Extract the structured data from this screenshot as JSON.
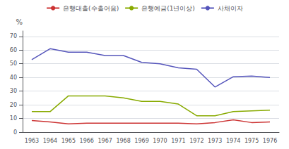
{
  "chart_data": {
    "type": "line",
    "ylabel": "%",
    "categories": [
      "1963",
      "1964",
      "1965",
      "1966",
      "1967",
      "1968",
      "1969",
      "1970",
      "1971",
      "1972",
      "1973",
      "1974",
      "1975",
      "1976"
    ],
    "series": [
      {
        "name": "은행대출(수출어음)",
        "color": "#cc3333",
        "values": [
          8.5,
          7.5,
          6.0,
          6.5,
          6.5,
          6.5,
          6.5,
          6.5,
          6.5,
          6.0,
          7.0,
          9.0,
          7.0,
          7.5
        ]
      },
      {
        "name": "은행예금(1년이상)",
        "color": "#88aa00",
        "values": [
          15.0,
          15.0,
          26.5,
          26.5,
          26.5,
          25.0,
          22.5,
          22.5,
          20.5,
          12.0,
          12.0,
          15.0,
          15.5,
          16.0
        ]
      },
      {
        "name": "사채이자",
        "color": "#5555bb",
        "values": [
          53.0,
          61.0,
          58.5,
          58.5,
          56.0,
          56.0,
          51.0,
          50.0,
          47.0,
          46.0,
          33.0,
          40.5,
          41.0,
          40.0
        ]
      }
    ],
    "ylim": [
      0,
      74
    ],
    "yticks": [
      0,
      10,
      20,
      30,
      40,
      50,
      60,
      70
    ],
    "grid": true,
    "legend": "top"
  }
}
